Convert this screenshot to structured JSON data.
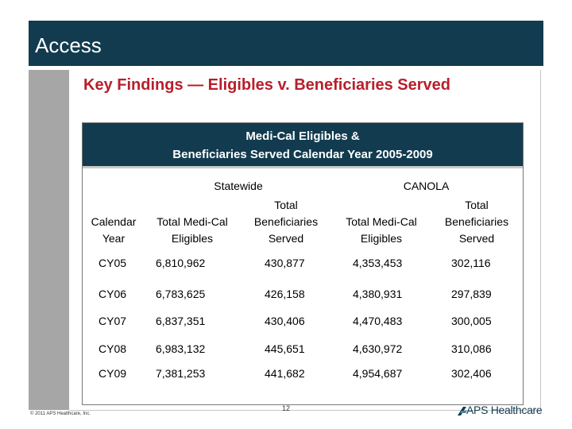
{
  "header": {
    "title": "Access"
  },
  "heading": "Key Findings — Eligibles v. Beneficiaries Served",
  "table": {
    "title_line1": "Medi-Cal Eligibles &",
    "title_line2": "Beneficiaries Served Calendar Year 2005-2009",
    "groups": [
      "Statewide",
      "CANOLA"
    ],
    "columns": [
      [
        "Calendar",
        "Year"
      ],
      [
        "Total Medi-Cal",
        "Eligibles"
      ],
      [
        "Total",
        "Beneficiaries",
        "Served"
      ],
      [
        "Total Medi-Cal",
        "Eligibles"
      ],
      [
        "Total",
        "Beneficiaries",
        "Served"
      ]
    ],
    "rows": [
      [
        "CY05",
        "6,810,962",
        "430,877",
        "4,353,453",
        "302,116"
      ],
      [
        "CY06",
        "6,783,625",
        "426,158",
        "4,380,931",
        "297,839"
      ],
      [
        "CY07",
        "6,837,351",
        "430,406",
        "4,470,483",
        "300,005"
      ],
      [
        "CY08",
        "6,983,132",
        "445,651",
        "4,630,972",
        "310,086"
      ],
      [
        "CY09",
        "7,381,253",
        "441,682",
        "4,954,687",
        "302,406"
      ]
    ]
  },
  "footer": {
    "copyright": "© 2011 APS Healthcare, Inc.",
    "page": "12",
    "logo_text": "APS Healthcare",
    "logo_icon": "aps-arrow-icon"
  }
}
